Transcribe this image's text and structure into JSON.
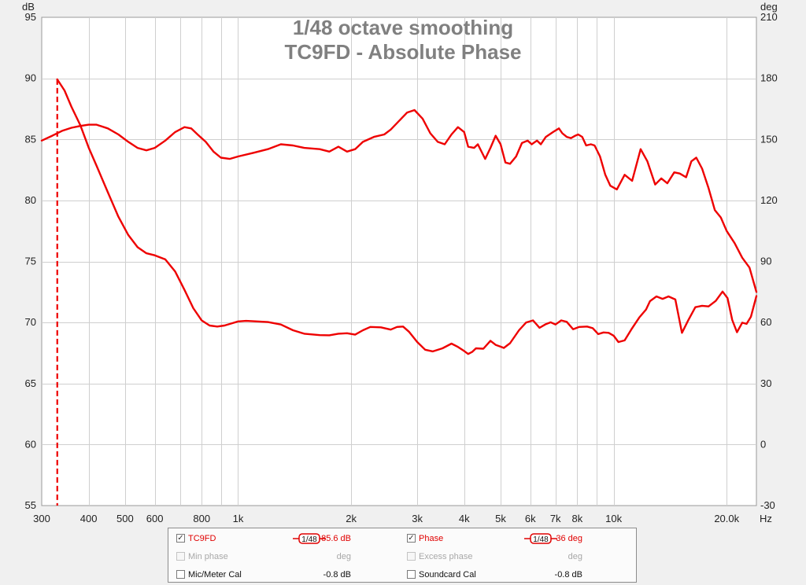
{
  "chart_data": {
    "type": "line",
    "title_lines": [
      "1/48 octave smoothing",
      "TC9FD - Absolute Phase"
    ],
    "x_axis": {
      "scale": "log",
      "range": [
        300,
        24000
      ],
      "unit": "Hz",
      "ticks": [
        {
          "v": 300,
          "label": "300"
        },
        {
          "v": 400,
          "label": "400"
        },
        {
          "v": 500,
          "label": "500"
        },
        {
          "v": 600,
          "label": "600"
        },
        {
          "v": 800,
          "label": "800"
        },
        {
          "v": 1000,
          "label": "1k"
        },
        {
          "v": 2000,
          "label": "2k"
        },
        {
          "v": 3000,
          "label": "3k"
        },
        {
          "v": 4000,
          "label": "4k"
        },
        {
          "v": 5000,
          "label": "5k"
        },
        {
          "v": 6000,
          "label": "6k"
        },
        {
          "v": 7000,
          "label": "7k"
        },
        {
          "v": 8000,
          "label": "8k"
        },
        {
          "v": 10000,
          "label": "10k"
        },
        {
          "v": 20000,
          "label": "20.0k"
        }
      ],
      "minor_gridlines": [
        700,
        900,
        9000
      ]
    },
    "y_left": {
      "unit": "dB",
      "range": [
        55,
        95
      ],
      "ticks": [
        "95",
        "90",
        "85",
        "80",
        "75",
        "70",
        "65",
        "60",
        "55"
      ]
    },
    "y_right": {
      "unit": "deg",
      "range": [
        -30,
        210
      ],
      "ticks": [
        "210",
        "180",
        "150",
        "120",
        "90",
        "60",
        "30",
        "0",
        "-30"
      ]
    },
    "grid": true,
    "marker_line": {
      "x": 330,
      "style": "dashed",
      "color": "#ee0000"
    },
    "series": [
      {
        "name": "TC9FD",
        "axis": "left",
        "color": "#ee0000",
        "unit": "dB",
        "points": [
          [
            300,
            84.9
          ],
          [
            320,
            85.3
          ],
          [
            340,
            85.7
          ],
          [
            360,
            85.95
          ],
          [
            380,
            86.1
          ],
          [
            400,
            86.2
          ],
          [
            420,
            86.2
          ],
          [
            450,
            85.9
          ],
          [
            480,
            85.4
          ],
          [
            510,
            84.8
          ],
          [
            540,
            84.3
          ],
          [
            570,
            84.1
          ],
          [
            600,
            84.3
          ],
          [
            640,
            84.9
          ],
          [
            680,
            85.6
          ],
          [
            720,
            86
          ],
          [
            750,
            85.9
          ],
          [
            780,
            85.4
          ],
          [
            820,
            84.8
          ],
          [
            860,
            84
          ],
          [
            900,
            83.5
          ],
          [
            950,
            83.4
          ],
          [
            1000,
            83.6
          ],
          [
            1100,
            83.9
          ],
          [
            1200,
            84.2
          ],
          [
            1300,
            84.6
          ],
          [
            1400,
            84.5
          ],
          [
            1500,
            84.3
          ],
          [
            1650,
            84.2
          ],
          [
            1750,
            84
          ],
          [
            1850,
            84.4
          ],
          [
            1950,
            84
          ],
          [
            2050,
            84.2
          ],
          [
            2150,
            84.8
          ],
          [
            2300,
            85.2
          ],
          [
            2450,
            85.4
          ],
          [
            2550,
            85.8
          ],
          [
            2700,
            86.6
          ],
          [
            2820,
            87.2
          ],
          [
            2950,
            87.4
          ],
          [
            3100,
            86.7
          ],
          [
            3250,
            85.5
          ],
          [
            3400,
            84.8
          ],
          [
            3550,
            84.6
          ],
          [
            3700,
            85.4
          ],
          [
            3850,
            86
          ],
          [
            4000,
            85.6
          ],
          [
            4100,
            84.4
          ],
          [
            4250,
            84.3
          ],
          [
            4350,
            84.6
          ],
          [
            4550,
            83.4
          ],
          [
            4700,
            84.3
          ],
          [
            4850,
            85.3
          ],
          [
            5000,
            84.6
          ],
          [
            5150,
            83.1
          ],
          [
            5300,
            83
          ],
          [
            5500,
            83.6
          ],
          [
            5700,
            84.7
          ],
          [
            5900,
            84.9
          ],
          [
            6050,
            84.6
          ],
          [
            6250,
            84.9
          ],
          [
            6400,
            84.6
          ],
          [
            6600,
            85.2
          ],
          [
            6900,
            85.6
          ],
          [
            7150,
            85.9
          ],
          [
            7300,
            85.5
          ],
          [
            7500,
            85.2
          ],
          [
            7700,
            85.1
          ],
          [
            7900,
            85.3
          ],
          [
            8050,
            85.4
          ],
          [
            8250,
            85.2
          ],
          [
            8450,
            84.5
          ],
          [
            8700,
            84.6
          ],
          [
            8900,
            84.5
          ],
          [
            9200,
            83.6
          ],
          [
            9500,
            82.1
          ],
          [
            9800,
            81.2
          ],
          [
            10200,
            80.9
          ],
          [
            10700,
            82.1
          ],
          [
            11200,
            81.6
          ],
          [
            11800,
            84.2
          ],
          [
            12300,
            83.2
          ],
          [
            12900,
            81.3
          ],
          [
            13400,
            81.8
          ],
          [
            13900,
            81.4
          ],
          [
            14500,
            82.3
          ],
          [
            15000,
            82.2
          ],
          [
            15600,
            81.9
          ],
          [
            16100,
            83.2
          ],
          [
            16600,
            83.5
          ],
          [
            17200,
            82.6
          ],
          [
            17900,
            81
          ],
          [
            18600,
            79.2
          ],
          [
            19300,
            78.6
          ],
          [
            20000,
            77.5
          ],
          [
            21000,
            76.5
          ],
          [
            22000,
            75.3
          ],
          [
            23000,
            74.5
          ],
          [
            24000,
            72.5
          ]
        ]
      },
      {
        "name": "Phase",
        "axis": "right",
        "color": "#ee0000",
        "unit": "deg",
        "points": [
          [
            330,
            179.5
          ],
          [
            345,
            174
          ],
          [
            360,
            166
          ],
          [
            380,
            157
          ],
          [
            400,
            146
          ],
          [
            420,
            137
          ],
          [
            450,
            124
          ],
          [
            480,
            112
          ],
          [
            510,
            103
          ],
          [
            540,
            97
          ],
          [
            570,
            94
          ],
          [
            600,
            93
          ],
          [
            640,
            91
          ],
          [
            680,
            85
          ],
          [
            720,
            76
          ],
          [
            760,
            67
          ],
          [
            800,
            61
          ],
          [
            840,
            58.5
          ],
          [
            880,
            58
          ],
          [
            920,
            58.5
          ],
          [
            960,
            59.5
          ],
          [
            1000,
            60.5
          ],
          [
            1050,
            60.8
          ],
          [
            1100,
            60.6
          ],
          [
            1200,
            60.2
          ],
          [
            1300,
            59
          ],
          [
            1400,
            56.2
          ],
          [
            1500,
            54.5
          ],
          [
            1650,
            53.8
          ],
          [
            1750,
            53.7
          ],
          [
            1850,
            54.5
          ],
          [
            1950,
            54.7
          ],
          [
            2050,
            54
          ],
          [
            2150,
            56.2
          ],
          [
            2250,
            57.8
          ],
          [
            2400,
            57.6
          ],
          [
            2550,
            56.5
          ],
          [
            2650,
            57.8
          ],
          [
            2750,
            58
          ],
          [
            2850,
            55.5
          ],
          [
            3000,
            50.4
          ],
          [
            3150,
            46.6
          ],
          [
            3300,
            45.8
          ],
          [
            3500,
            47.3
          ],
          [
            3700,
            49.6
          ],
          [
            3850,
            48
          ],
          [
            4000,
            46
          ],
          [
            4100,
            44.5
          ],
          [
            4200,
            45.5
          ],
          [
            4300,
            47.3
          ],
          [
            4500,
            47.1
          ],
          [
            4700,
            51
          ],
          [
            4850,
            49
          ],
          [
            5000,
            48.1
          ],
          [
            5100,
            47.5
          ],
          [
            5300,
            49.8
          ],
          [
            5600,
            56.2
          ],
          [
            5850,
            60
          ],
          [
            6100,
            61
          ],
          [
            6350,
            57.4
          ],
          [
            6600,
            59.2
          ],
          [
            6800,
            60.1
          ],
          [
            7000,
            59
          ],
          [
            7250,
            61
          ],
          [
            7500,
            60.3
          ],
          [
            7800,
            56.7
          ],
          [
            8100,
            57.8
          ],
          [
            8500,
            58
          ],
          [
            8800,
            57.2
          ],
          [
            9100,
            54.3
          ],
          [
            9400,
            55.1
          ],
          [
            9700,
            54.9
          ],
          [
            10000,
            53.5
          ],
          [
            10300,
            50.4
          ],
          [
            10700,
            51.2
          ],
          [
            11200,
            57.2
          ],
          [
            11700,
            62.4
          ],
          [
            12200,
            66.4
          ],
          [
            12500,
            70.5
          ],
          [
            13000,
            72.8
          ],
          [
            13500,
            71.6
          ],
          [
            14000,
            72.8
          ],
          [
            14600,
            71.3
          ],
          [
            15200,
            54.9
          ],
          [
            15800,
            61.1
          ],
          [
            16500,
            67.5
          ],
          [
            17200,
            68.2
          ],
          [
            17900,
            67.9
          ],
          [
            18700,
            70.6
          ],
          [
            19500,
            75.2
          ],
          [
            20100,
            72
          ],
          [
            20700,
            61.2
          ],
          [
            21300,
            55.2
          ],
          [
            22000,
            59.9
          ],
          [
            22600,
            59.3
          ],
          [
            23200,
            62.8
          ],
          [
            24000,
            73
          ]
        ]
      }
    ]
  },
  "legend": {
    "rows": [
      [
        {
          "label": "TC9FD",
          "checked": true,
          "enabled": true,
          "smoothing": "1/48",
          "value": "85.6 dB",
          "style": "red"
        },
        {
          "label": "Phase",
          "checked": true,
          "enabled": true,
          "smoothing": "1/48",
          "value": "36 deg",
          "style": "red"
        }
      ],
      [
        {
          "label": "Min phase",
          "checked": false,
          "enabled": false,
          "smoothing": "",
          "value": "deg",
          "style": "gray"
        },
        {
          "label": "Excess phase",
          "checked": false,
          "enabled": false,
          "smoothing": "",
          "value": "deg",
          "style": "gray"
        }
      ],
      [
        {
          "label": "Mic/Meter Cal",
          "checked": false,
          "enabled": true,
          "smoothing": "",
          "value": "-0.8 dB",
          "style": "blk"
        },
        {
          "label": "Soundcard Cal",
          "checked": false,
          "enabled": true,
          "smoothing": "",
          "value": "-0.8 dB",
          "style": "blk"
        }
      ]
    ]
  }
}
